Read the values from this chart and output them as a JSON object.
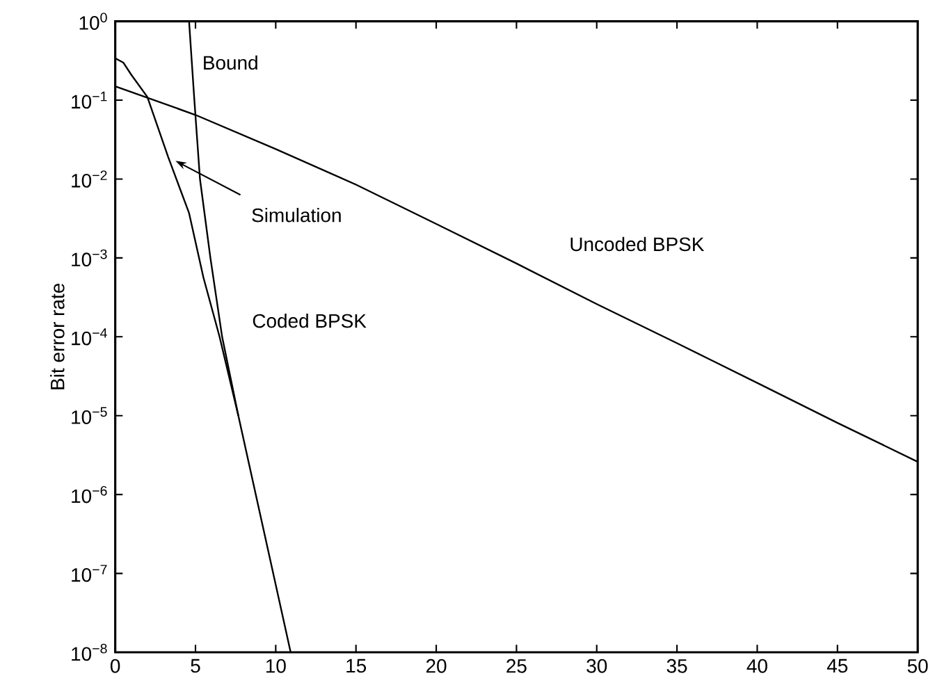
{
  "chart_data": {
    "type": "line",
    "ylabel": "Bit error rate",
    "log": "y",
    "xlim": [
      0,
      50
    ],
    "ylim": [
      1e-08,
      1
    ],
    "xticks": [
      0,
      5,
      10,
      15,
      20,
      25,
      30,
      35,
      40,
      45,
      50
    ],
    "yticks": [
      {
        "value": 1,
        "label": "10$^{0}$"
      },
      {
        "value": 0.1,
        "label": "10$^{−1}$"
      },
      {
        "value": 0.01,
        "label": "10$^{−2}$"
      },
      {
        "value": 0.001,
        "label": "10$^{−3}$"
      },
      {
        "value": 0.0001,
        "label": "10$^{−4}$"
      },
      {
        "value": 1e-05,
        "label": "10$^{−5}$"
      },
      {
        "value": 1e-06,
        "label": "10$^{−6}$"
      },
      {
        "value": 1e-07,
        "label": "10$^{−7}$"
      },
      {
        "value": 1e-08,
        "label": "10$^{−8}$"
      }
    ],
    "grid": false,
    "legend": false,
    "marker": "none",
    "line_style": "solid",
    "series": [
      {
        "name": "Uncoded BPSK",
        "color": "#000000",
        "x": [
          0,
          5,
          10,
          15,
          20,
          25,
          30,
          35,
          40,
          45,
          50
        ],
        "values": [
          0.15,
          0.065,
          0.024,
          0.0085,
          0.0027,
          0.00085,
          0.00026,
          8.3e-05,
          2.6e-05,
          8.1e-06,
          2.6e-06
        ]
      },
      {
        "name": "Bound",
        "color": "#000000",
        "x": [
          4.6,
          4.93,
          5.28,
          5.93,
          6.66,
          7.67,
          10.93
        ],
        "values": [
          1,
          0.1,
          0.01,
          0.001,
          0.0001,
          1e-05,
          1e-08
        ]
      },
      {
        "name": "Simulation",
        "color": "#000000",
        "x": [
          0,
          0.5,
          1,
          2,
          3.3,
          4.6,
          5.5,
          6.5,
          7.67
        ],
        "values": [
          0.34,
          0.3,
          0.21,
          0.11,
          0.019,
          0.0037,
          0.00056,
          0.0001,
          1e-05
        ]
      }
    ],
    "annotations": [
      {
        "text": "Coded BPSK",
        "x": 7,
        "y": 0.0001
      }
    ]
  }
}
